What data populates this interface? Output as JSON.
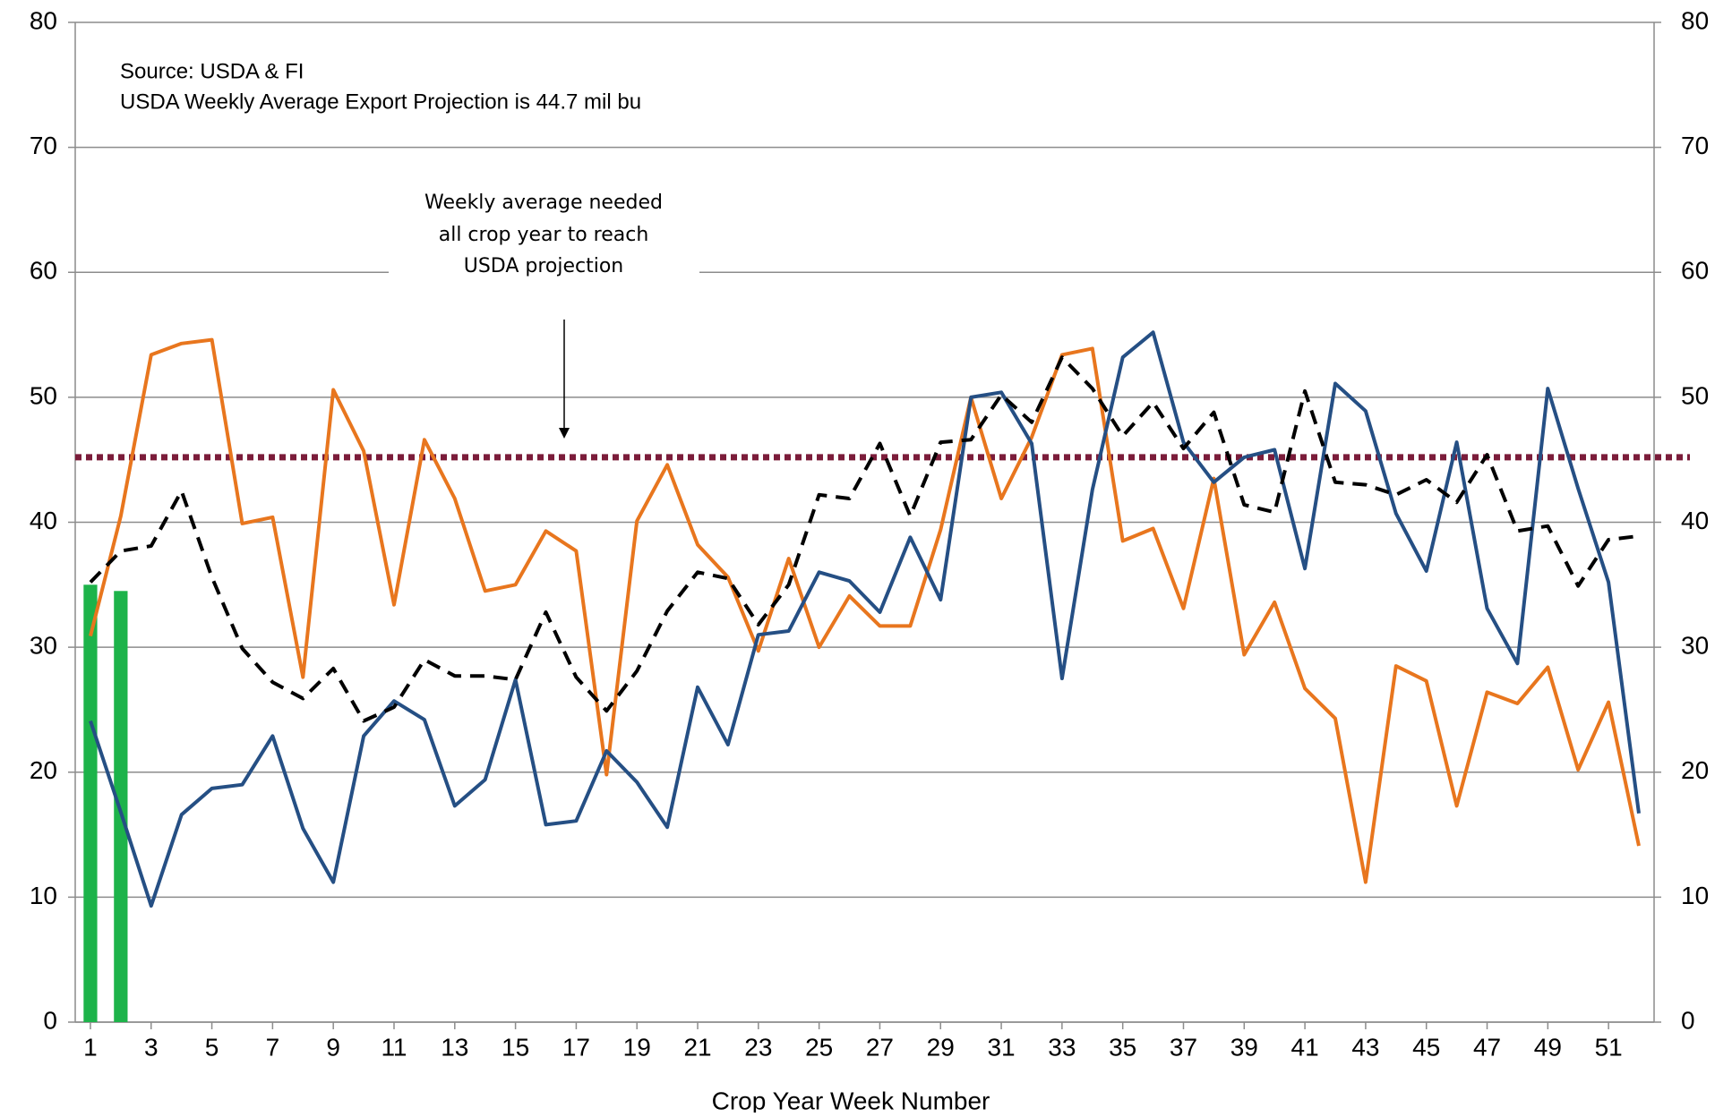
{
  "chart_data": {
    "type": "line",
    "x_label": "Crop Year Week Number",
    "annotations": [
      "Source: USDA & FI",
      "USDA Weekly Average Export Projection is 44.7 mil bu"
    ],
    "callout": [
      "Weekly average needed",
      "all crop year to reach",
      "USDA projection"
    ],
    "x": [
      1,
      2,
      3,
      4,
      5,
      6,
      7,
      8,
      9,
      10,
      11,
      12,
      13,
      14,
      15,
      16,
      17,
      18,
      19,
      20,
      21,
      22,
      23,
      24,
      25,
      26,
      27,
      28,
      29,
      30,
      31,
      32,
      33,
      34,
      35,
      36,
      37,
      38,
      39,
      40,
      41,
      42,
      43,
      44,
      45,
      46,
      47,
      48,
      49,
      50,
      51,
      52
    ],
    "xlim": [
      0.5,
      52.5
    ],
    "xticks": [
      1,
      3,
      5,
      7,
      9,
      11,
      13,
      15,
      17,
      19,
      21,
      23,
      25,
      27,
      29,
      31,
      33,
      35,
      37,
      39,
      41,
      43,
      45,
      47,
      49,
      51
    ],
    "ylim": [
      0,
      80
    ],
    "yticks": [
      0,
      10,
      20,
      30,
      40,
      50,
      60,
      70,
      80
    ],
    "y2lim": [
      0,
      80
    ],
    "y2ticks": [
      0,
      10,
      20,
      30,
      40,
      50,
      60,
      70,
      80
    ],
    "grid": true,
    "series": [
      {
        "type": "bar",
        "color": "#1db34a",
        "values": [
          35.0,
          34.5,
          null,
          null,
          null,
          null,
          null,
          null,
          null,
          null,
          null,
          null,
          null,
          null,
          null,
          null,
          null,
          null,
          null,
          null,
          null,
          null,
          null,
          null,
          null,
          null,
          null,
          null,
          null,
          null,
          null,
          null,
          null,
          null,
          null,
          null,
          null,
          null,
          null,
          null,
          null,
          null,
          null,
          null,
          null,
          null,
          null,
          null,
          null,
          null,
          null,
          null
        ]
      },
      {
        "type": "line",
        "color": "#e8761e",
        "values": [
          30.9,
          40.5,
          53.4,
          54.3,
          54.6,
          39.9,
          40.4,
          27.6,
          50.6,
          45.7,
          33.4,
          46.6,
          41.9,
          34.5,
          35.0,
          39.3,
          37.7,
          19.8,
          40.1,
          44.6,
          38.2,
          35.6,
          29.7,
          37.1,
          30.0,
          34.1,
          31.7,
          31.7,
          39.4,
          50.0,
          41.9,
          46.8,
          53.4,
          53.9,
          38.5,
          39.5,
          33.1,
          43.5,
          29.4,
          33.6,
          26.7,
          24.3,
          11.2,
          28.5,
          27.3,
          17.3,
          26.4,
          25.5,
          28.4,
          20.2,
          25.6,
          14.1
        ]
      },
      {
        "type": "line",
        "color": "#254f84",
        "values": [
          24.1,
          16.8,
          9.3,
          16.6,
          18.7,
          19.0,
          22.9,
          15.5,
          11.2,
          22.9,
          25.7,
          24.2,
          17.3,
          19.4,
          27.4,
          15.8,
          16.1,
          21.7,
          19.2,
          15.6,
          26.8,
          22.2,
          31.0,
          31.3,
          36.0,
          35.3,
          32.8,
          38.8,
          33.8,
          50.0,
          50.4,
          46.3,
          27.5,
          42.6,
          53.2,
          55.2,
          46.4,
          43.2,
          45.2,
          45.8,
          36.3,
          51.1,
          48.9,
          40.7,
          36.1,
          46.4,
          33.1,
          28.7,
          50.7,
          42.7,
          35.2,
          16.7
        ]
      },
      {
        "type": "line",
        "color": "#000000",
        "dash": "dashed",
        "values": [
          35.2,
          37.7,
          38.1,
          42.5,
          35.6,
          29.9,
          27.2,
          25.9,
          28.3,
          24.1,
          25.2,
          29.0,
          27.7,
          27.7,
          27.4,
          32.8,
          27.6,
          24.9,
          28.1,
          32.9,
          36.0,
          35.5,
          31.8,
          35.0,
          42.2,
          41.9,
          46.3,
          40.5,
          46.4,
          46.6,
          50.2,
          48.0,
          53.2,
          50.7,
          46.9,
          49.6,
          45.9,
          48.8,
          41.4,
          40.8,
          50.5,
          43.2,
          43.0,
          42.2,
          43.4,
          41.6,
          45.4,
          39.3,
          39.7,
          34.9,
          38.6,
          38.9
        ]
      }
    ],
    "reference_line": {
      "value": 45.2,
      "color": "#7b1c3a",
      "style": "dotted"
    }
  }
}
